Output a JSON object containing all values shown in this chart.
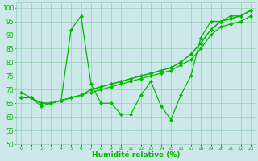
{
  "x": [
    0,
    1,
    2,
    3,
    4,
    5,
    6,
    7,
    8,
    9,
    10,
    11,
    12,
    13,
    14,
    15,
    16,
    17,
    18,
    19,
    20,
    21,
    22,
    23
  ],
  "line1": [
    69,
    67,
    64,
    65,
    66,
    92,
    97,
    72,
    65,
    65,
    61,
    61,
    68,
    73,
    64,
    59,
    68,
    75,
    89,
    95,
    95,
    97,
    97,
    99
  ],
  "line2": [
    67,
    67,
    65,
    65,
    66,
    67,
    68,
    70,
    71,
    72,
    73,
    74,
    75,
    76,
    77,
    78,
    80,
    83,
    87,
    92,
    95,
    96,
    97,
    99
  ],
  "line3": [
    67,
    67,
    65,
    65,
    66,
    67,
    68,
    70,
    71,
    72,
    73,
    74,
    75,
    76,
    77,
    78,
    80,
    83,
    87,
    92,
    95,
    96,
    97,
    99
  ],
  "line4": [
    67,
    67,
    65,
    65,
    66,
    67,
    68,
    69,
    70,
    71,
    72,
    73,
    74,
    75,
    76,
    77,
    79,
    81,
    85,
    90,
    93,
    94,
    95,
    97
  ],
  "xlabel": "Humidité relative (%)",
  "ylim": [
    50,
    102
  ],
  "xlim": [
    -0.5,
    23.5
  ],
  "yticks": [
    50,
    55,
    60,
    65,
    70,
    75,
    80,
    85,
    90,
    95,
    100
  ],
  "xtick_labels": [
    "0",
    "1",
    "2",
    "3",
    "4",
    "5",
    "6",
    "7",
    "8",
    "9",
    "10",
    "11",
    "12",
    "13",
    "14",
    "15",
    "16",
    "17",
    "18",
    "19",
    "20",
    "21",
    "22",
    "23"
  ],
  "line_color": "#00bb00",
  "bg_color": "#cce8e8",
  "grid_color": "#99ccbb",
  "marker": "D",
  "markersize": 2.2,
  "linewidth": 0.9
}
